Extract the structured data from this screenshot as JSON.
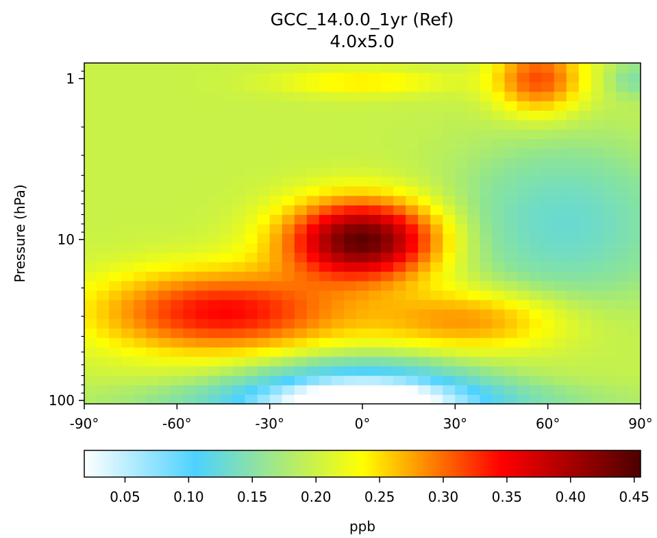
{
  "chart_data": {
    "type": "heatmap",
    "title": "GCC_14.0.0_1yr (Ref)",
    "subtitle": "4.0x5.0",
    "xlabel": "",
    "ylabel": "Pressure (hPa)",
    "x_ticks": [
      "-90°",
      "-60°",
      "-30°",
      "0°",
      "30°",
      "60°",
      "90°"
    ],
    "x_tick_values": [
      -90,
      -60,
      -30,
      0,
      30,
      60,
      90
    ],
    "xlim": [
      -90,
      90
    ],
    "y_scale": "log",
    "y_ticks": [
      "1",
      "10",
      "100"
    ],
    "y_tick_values": [
      1,
      10,
      100
    ],
    "ylim": [
      105,
      0.8
    ],
    "colorbar": {
      "label": "ppb",
      "ticks": [
        "0.05",
        "0.10",
        "0.15",
        "0.20",
        "0.25",
        "0.30",
        "0.35",
        "0.40",
        "0.45"
      ],
      "tick_values": [
        0.05,
        0.1,
        0.15,
        0.2,
        0.25,
        0.3,
        0.35,
        0.4,
        0.45
      ],
      "range": [
        0.018,
        0.455
      ],
      "colormap": [
        "#ffffff",
        "#4dd2ff",
        "#ffff00",
        "#ff0000",
        "#4d0000"
      ]
    },
    "grid": false,
    "latitudes": [
      -90,
      -86,
      -82,
      -78,
      -74,
      -70,
      -66,
      -62,
      -58,
      -54,
      -50,
      -46,
      -42,
      -38,
      -34,
      -30,
      -26,
      -22,
      -18,
      -14,
      -10,
      -6,
      -2,
      2,
      6,
      10,
      14,
      18,
      22,
      26,
      30,
      34,
      38,
      42,
      46,
      50,
      54,
      58,
      62,
      66,
      70,
      74,
      78,
      82,
      86,
      90
    ],
    "approximate_field_description": "Mixing ratio peaks ~0.45 ppb near equator at 10 hPa; minimum ~0.02 ppb near equator at 100 hPa; local maximum ~0.32 ppb at 50N-60N near 1 hPa."
  }
}
